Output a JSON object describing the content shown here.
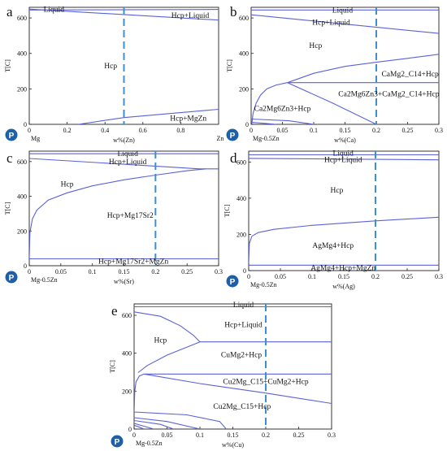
{
  "chart_data": [
    {
      "type": "line",
      "panel": "a",
      "xlabel": "w%(Zn)",
      "ylabel": "T[C]",
      "x_start_label": "Mg",
      "x_end_label": "Zn",
      "xlim": [
        0,
        1
      ],
      "ylim": [
        0,
        660
      ],
      "xticks": [
        0,
        0.2,
        0.4,
        0.6,
        0.8
      ],
      "xtick_labels": [
        "0",
        "0.2",
        "0.4",
        "0.6",
        "0.8"
      ],
      "yticks": [
        0,
        200,
        400,
        600
      ],
      "composition_marker": 0.5,
      "phase_labels": [
        {
          "text": "Liquid",
          "x": 0.13,
          "y": 648
        },
        {
          "text": "Hcp+Liquid",
          "x": 0.85,
          "y": 615
        },
        {
          "text": "Hcp",
          "x": 0.43,
          "y": 330
        },
        {
          "text": "Hcp+MgZn",
          "x": 0.84,
          "y": 35
        }
      ],
      "series": [
        {
          "x": [
            0,
            1
          ],
          "y": [
            650,
            588
          ]
        },
        {
          "x": [
            0,
            1
          ],
          "y": [
            645,
            648
          ]
        },
        {
          "x": [
            0.26,
            0.5,
            1
          ],
          "y": [
            0,
            38,
            85
          ]
        }
      ]
    },
    {
      "type": "line",
      "panel": "b",
      "xlabel": "w%(Ca)",
      "ylabel": "T[C]",
      "x_start_label": "Mg-0.5Zn",
      "xlim": [
        0,
        0.3
      ],
      "ylim": [
        0,
        660
      ],
      "xticks": [
        0,
        0.05,
        0.1,
        0.15,
        0.2,
        0.25,
        0.3
      ],
      "xtick_labels": [
        "0",
        "0.05",
        "0.1",
        "0.15",
        "0.2",
        "0.25",
        "0.3"
      ],
      "yticks": [
        0,
        200,
        400,
        600
      ],
      "composition_marker": 0.2,
      "phase_labels": [
        {
          "text": "Liquid",
          "x": 0.146,
          "y": 645
        },
        {
          "text": "Hcp+Liquid",
          "x": 0.128,
          "y": 575
        },
        {
          "text": "Hcp",
          "x": 0.103,
          "y": 445
        },
        {
          "text": "CaMg2_C14+Hcp",
          "x": 0.254,
          "y": 285
        },
        {
          "text": "Ca2Mg6Zn3+CaMg2_C14+Hcp",
          "x": 0.22,
          "y": 172
        },
        {
          "text": "Ca2Mg6Zn3+Hcp",
          "x": 0.05,
          "y": 90
        }
      ],
      "series": [
        {
          "x": [
            0,
            0.3
          ],
          "y": [
            645,
            645
          ]
        },
        {
          "x": [
            0,
            0.3
          ],
          "y": [
            618,
            513
          ]
        },
        {
          "x": [
            0.001,
            0.003,
            0.008,
            0.015,
            0.025,
            0.04,
            0.058
          ],
          "y": [
            0,
            60,
            120,
            165,
            200,
            222,
            235
          ]
        },
        {
          "x": [
            0.058,
            0.1,
            0.15,
            0.2,
            0.25,
            0.3
          ],
          "y": [
            235,
            288,
            327,
            350,
            372,
            395
          ]
        },
        {
          "x": [
            0.058,
            0.3
          ],
          "y": [
            235,
            235
          ]
        },
        {
          "x": [
            0.058,
            0.13,
            0.2
          ],
          "y": [
            235,
            120,
            0
          ]
        },
        {
          "x": [
            0,
            0.06,
            0.1
          ],
          "y": [
            30,
            20,
            0
          ]
        },
        {
          "x": [
            0,
            0.04
          ],
          "y": [
            12,
            0
          ]
        }
      ]
    },
    {
      "type": "line",
      "panel": "c",
      "xlabel": "w%(Sr)",
      "ylabel": "T[C]",
      "x_start_label": "Mg-0.5Zn",
      "xlim": [
        0,
        0.3
      ],
      "ylim": [
        0,
        660
      ],
      "xticks": [
        0,
        0.05,
        0.1,
        0.15,
        0.2,
        0.25,
        0.3
      ],
      "xtick_labels": [
        "0",
        "0.05",
        "0.1",
        "0.15",
        "0.2",
        "0.25",
        "0.3"
      ],
      "yticks": [
        0,
        200,
        400,
        600
      ],
      "composition_marker": 0.2,
      "phase_labels": [
        {
          "text": "Liquid",
          "x": 0.156,
          "y": 645
        },
        {
          "text": "Hcp+Liquid",
          "x": 0.156,
          "y": 600
        },
        {
          "text": "Hcp",
          "x": 0.06,
          "y": 470
        },
        {
          "text": "Hcp+Mg17Sr2",
          "x": 0.16,
          "y": 290
        },
        {
          "text": "Hcp+Mg17Sr2+MgZn",
          "x": 0.165,
          "y": 25
        }
      ],
      "series": [
        {
          "x": [
            0,
            0.3
          ],
          "y": [
            645,
            645
          ]
        },
        {
          "x": [
            0,
            0.27,
            0.3
          ],
          "y": [
            618,
            558,
            558
          ]
        },
        {
          "x": [
            0,
            0.001,
            0.005,
            0.012,
            0.03,
            0.06,
            0.1,
            0.15,
            0.2,
            0.25,
            0.28
          ],
          "y": [
            40,
            190,
            270,
            320,
            378,
            420,
            460,
            495,
            522,
            547,
            558
          ]
        },
        {
          "x": [
            0,
            0.3
          ],
          "y": [
            40,
            40
          ]
        }
      ]
    },
    {
      "type": "line",
      "panel": "d",
      "xlabel": "w%(Ag)",
      "ylabel": "T[C]",
      "x_start_label": "Mg-0.5Zn",
      "xlim": [
        0,
        0.3
      ],
      "ylim": [
        0,
        660
      ],
      "xticks": [
        0,
        0.05,
        0.1,
        0.15,
        0.2,
        0.25,
        0.3
      ],
      "xtick_labels": [
        "0",
        "0.05",
        "0.1",
        "0.15",
        "0.2",
        "0.25",
        "0.3"
      ],
      "yticks": [
        0,
        200,
        400,
        600
      ],
      "composition_marker": 0.2,
      "phase_labels": [
        {
          "text": "Liquid",
          "x": 0.149,
          "y": 648
        },
        {
          "text": "Hcp+Liquid",
          "x": 0.149,
          "y": 612
        },
        {
          "text": "Hcp",
          "x": 0.139,
          "y": 445
        },
        {
          "text": "AgMg4+Hcp",
          "x": 0.133,
          "y": 140
        },
        {
          "text": "AgMg4+Hcp+MgZn",
          "x": 0.149,
          "y": 15
        }
      ],
      "series": [
        {
          "x": [
            0,
            0.3
          ],
          "y": [
            640,
            640
          ]
        },
        {
          "x": [
            0,
            0.3
          ],
          "y": [
            620,
            612
          ]
        },
        {
          "x": [
            0,
            0.001,
            0.005,
            0.015,
            0.04,
            0.1,
            0.2,
            0.3
          ],
          "y": [
            40,
            150,
            190,
            210,
            228,
            250,
            275,
            295
          ]
        },
        {
          "x": [
            0,
            0.3
          ],
          "y": [
            30,
            30
          ]
        }
      ]
    },
    {
      "type": "line",
      "panel": "e",
      "xlabel": "w%(Cu)",
      "ylabel": "T[C]",
      "x_start_label": "Mg-0.5Zn",
      "xlim": [
        0,
        0.3
      ],
      "ylim": [
        0,
        660
      ],
      "xticks": [
        0,
        0.05,
        0.1,
        0.15,
        0.2,
        0.25,
        0.3
      ],
      "xtick_labels": [
        "0",
        "0.05",
        "0.1",
        "0.15",
        "0.2",
        "0.25",
        "0.3"
      ],
      "yticks": [
        0,
        200,
        400,
        600
      ],
      "composition_marker": 0.2,
      "phase_labels": [
        {
          "text": "Liquid",
          "x": 0.166,
          "y": 655
        },
        {
          "text": "Hcp+Liquid",
          "x": 0.166,
          "y": 550
        },
        {
          "text": "Hcp",
          "x": 0.04,
          "y": 470
        },
        {
          "text": "CuMg2+Hcp",
          "x": 0.163,
          "y": 392
        },
        {
          "text": "Cu2Mg_C15+CuMg2+Hcp",
          "x": 0.2,
          "y": 250
        },
        {
          "text": "Cu2Mg_C15+Hcp",
          "x": 0.164,
          "y": 120
        }
      ],
      "series": [
        {
          "x": [
            0,
            0.3
          ],
          "y": [
            645,
            645
          ]
        },
        {
          "x": [
            0,
            0.04,
            0.07,
            0.09,
            0.1
          ],
          "y": [
            618,
            595,
            545,
            495,
            460
          ]
        },
        {
          "x": [
            0.1,
            0.3
          ],
          "y": [
            460,
            460
          ]
        },
        {
          "x": [
            0.006,
            0.02,
            0.05,
            0.08,
            0.1
          ],
          "y": [
            298,
            335,
            390,
            432,
            460
          ]
        },
        {
          "x": [
            0,
            0.001,
            0.003,
            0.008,
            0.015
          ],
          "y": [
            90,
            200,
            250,
            280,
            290
          ]
        },
        {
          "x": [
            0.015,
            0.3
          ],
          "y": [
            290,
            290
          ]
        },
        {
          "x": [
            0.015,
            0.1,
            0.2,
            0.3
          ],
          "y": [
            290,
            240,
            190,
            135
          ]
        },
        {
          "x": [
            0,
            0.08,
            0.13,
            0.14
          ],
          "y": [
            90,
            75,
            40,
            0
          ]
        },
        {
          "x": [
            0,
            0.05,
            0.1
          ],
          "y": [
            60,
            40,
            0
          ]
        },
        {
          "x": [
            0,
            0.04,
            0.06
          ],
          "y": [
            45,
            25,
            0
          ]
        },
        {
          "x": [
            0,
            0.015,
            0.03
          ],
          "y": [
            30,
            15,
            0
          ]
        },
        {
          "x": [
            0,
            0.008,
            0.015
          ],
          "y": [
            20,
            10,
            0
          ]
        }
      ]
    }
  ]
}
